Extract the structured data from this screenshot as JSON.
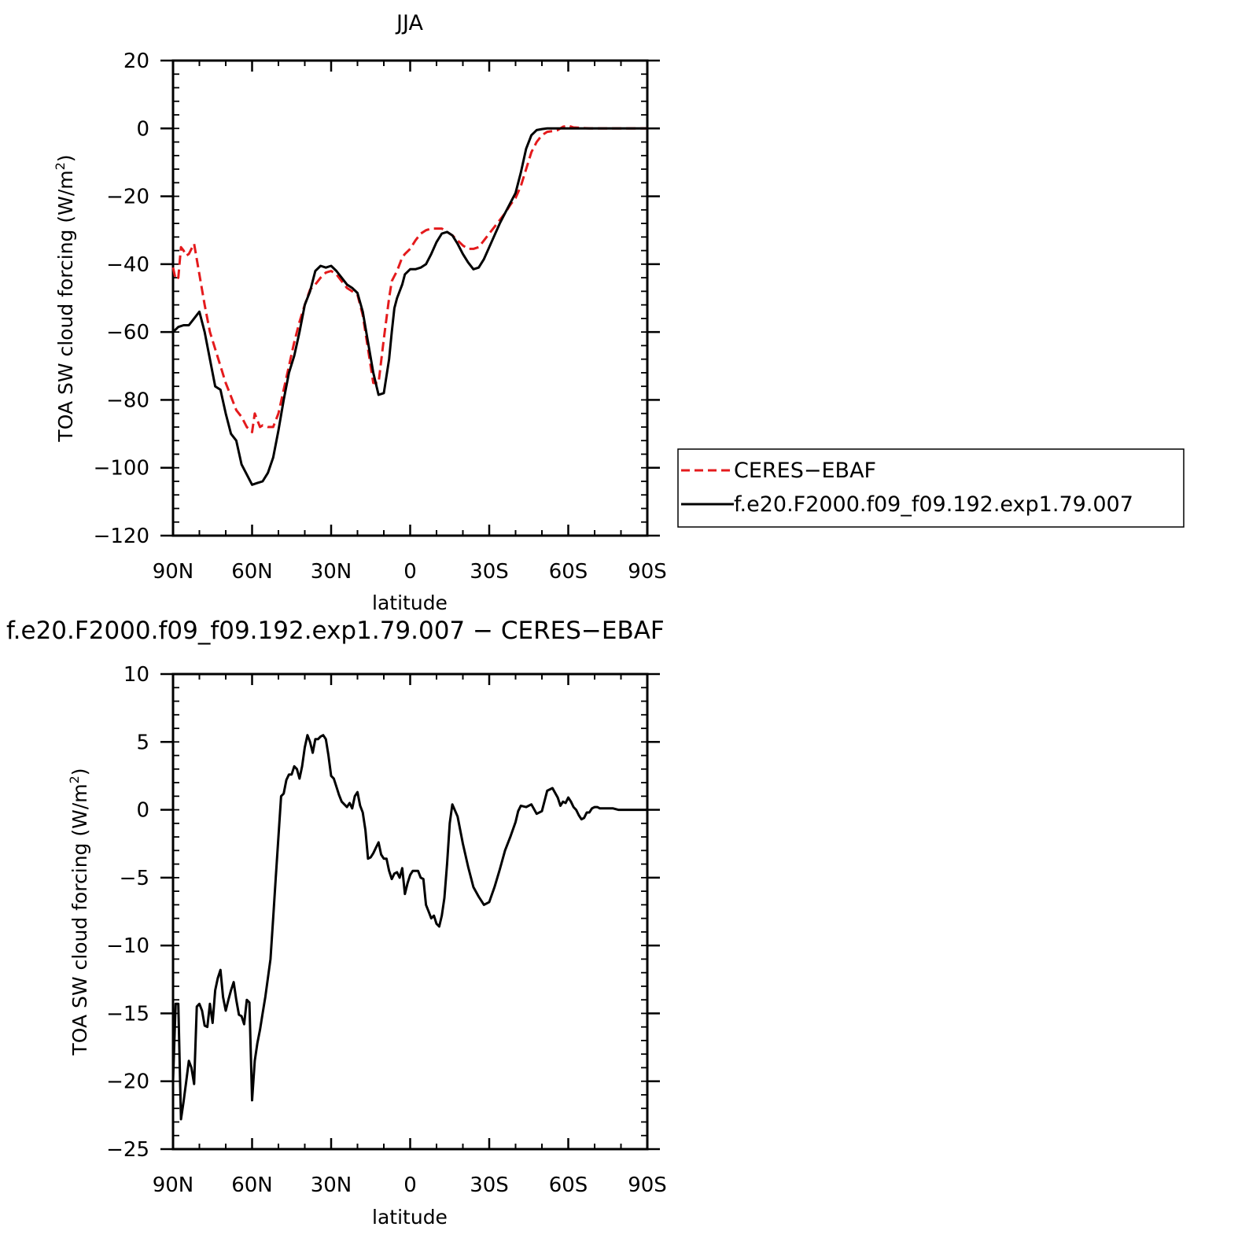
{
  "chart_data": [
    {
      "type": "line",
      "title": "JJA",
      "xlabel": "latitude",
      "ylabel": "TOA SW cloud forcing (W/m²)",
      "ylabel_base": "TOA SW cloud forcing (W/m",
      "ylabel_sup": "2",
      "ylabel_end": ")",
      "xlim": [
        90,
        -90
      ],
      "ylim": [
        -120,
        20
      ],
      "x_ticks": [
        {
          "value": 90,
          "label": "90N"
        },
        {
          "value": 60,
          "label": "60N"
        },
        {
          "value": 30,
          "label": "30N"
        },
        {
          "value": 0,
          "label": "0"
        },
        {
          "value": -30,
          "label": "30S"
        },
        {
          "value": -60,
          "label": "60S"
        },
        {
          "value": -90,
          "label": "90S"
        }
      ],
      "y_ticks": [
        {
          "value": 20,
          "label": "20"
        },
        {
          "value": 0,
          "label": "0"
        },
        {
          "value": -20,
          "label": "−20"
        },
        {
          "value": -40,
          "label": "−40"
        },
        {
          "value": -60,
          "label": "−60"
        },
        {
          "value": -80,
          "label": "−80"
        },
        {
          "value": -100,
          "label": "−100"
        },
        {
          "value": -120,
          "label": "−120"
        }
      ],
      "grid": false,
      "legend_position": "outside-right",
      "series": [
        {
          "name": "CERES−EBAF",
          "color": "#e41a1c",
          "dash": "dashed",
          "x": [
            90,
            89,
            88,
            87,
            86,
            85,
            84,
            83,
            82,
            80,
            78,
            76,
            74,
            72,
            70,
            68,
            66,
            64,
            62,
            60,
            59,
            58,
            57,
            56,
            54,
            52,
            50,
            48,
            46,
            44,
            42,
            40,
            38,
            36,
            34,
            32,
            30,
            28,
            26,
            24,
            22,
            20,
            18,
            16,
            14,
            12,
            10,
            8,
            7,
            6,
            5,
            4,
            3,
            2,
            0,
            -2,
            -4,
            -6,
            -8,
            -10,
            -12,
            -14,
            -16,
            -18,
            -20,
            -22,
            -24,
            -26,
            -28,
            -30,
            -32,
            -34,
            -36,
            -38,
            -40,
            -42,
            -44,
            -46,
            -48,
            -50,
            -52,
            -54,
            -56,
            -58,
            -60,
            -62,
            -64,
            -66,
            -68,
            -70,
            -72,
            -74,
            -76,
            -78,
            -80,
            -82,
            -84,
            -86,
            -88,
            -90
          ],
          "y": [
            -41,
            -44.5,
            -44,
            -35,
            -36,
            -37.5,
            -37,
            -35.5,
            -34,
            -43,
            -52,
            -60,
            -65,
            -70,
            -75,
            -79,
            -83,
            -85,
            -88,
            -89.5,
            -84,
            -86,
            -88,
            -87.5,
            -88,
            -88,
            -84,
            -77,
            -70,
            -63,
            -57,
            -52,
            -47.5,
            -46,
            -44,
            -42.5,
            -42,
            -43,
            -45,
            -47,
            -48,
            -49,
            -55,
            -65,
            -75,
            -75,
            -62,
            -50,
            -45,
            -43.5,
            -42,
            -40,
            -38,
            -37,
            -35.5,
            -33,
            -31,
            -30,
            -29.5,
            -29.5,
            -29.5,
            -30.5,
            -31.5,
            -33,
            -34.5,
            -35.5,
            -35.5,
            -35,
            -33,
            -31,
            -29,
            -27,
            -25,
            -22.5,
            -20.5,
            -17,
            -12,
            -7,
            -4,
            -2,
            -1,
            -0.8,
            -0.5,
            0.5,
            0.8,
            0.3,
            0.2,
            0.1,
            0,
            0,
            0,
            0,
            0,
            0,
            0,
            0,
            0,
            0,
            0,
            0
          ]
        },
        {
          "name": "f.e20.F2000.f09_f09.192.exp1.79.007",
          "color": "#000000",
          "dash": "solid",
          "x": [
            90,
            88,
            86,
            84,
            82,
            80,
            78,
            76,
            74,
            72,
            70,
            68,
            66,
            64,
            62,
            60,
            58,
            56,
            54,
            52,
            50,
            48,
            46,
            44,
            42,
            40,
            38,
            36,
            34,
            32,
            30,
            28,
            26,
            24,
            22,
            20,
            18,
            16,
            14,
            12,
            10,
            8,
            7,
            6,
            5,
            4,
            3,
            2,
            0,
            -2,
            -4,
            -6,
            -8,
            -10,
            -12,
            -14,
            -16,
            -18,
            -20,
            -22,
            -24,
            -26,
            -28,
            -30,
            -32,
            -34,
            -36,
            -38,
            -40,
            -42,
            -44,
            -46,
            -48,
            -50,
            -52,
            -54,
            -56,
            -58,
            -60,
            -62,
            -64,
            -66,
            -68,
            -70,
            -72,
            -74,
            -76,
            -78,
            -80,
            -82,
            -84,
            -86,
            -88,
            -90
          ],
          "y": [
            -60,
            -58.5,
            -58,
            -58,
            -56,
            -54,
            -60,
            -68,
            -76,
            -77,
            -84,
            -90,
            -92,
            -99,
            -102,
            -105,
            -104.5,
            -104,
            -101.5,
            -97,
            -89,
            -80,
            -72,
            -67,
            -60,
            -52,
            -48,
            -42,
            -40.5,
            -41,
            -40.5,
            -42,
            -44,
            -46,
            -47,
            -48.5,
            -54,
            -63,
            -72,
            -78.5,
            -78,
            -68,
            -60,
            -53,
            -50,
            -48,
            -46,
            -43,
            -41.5,
            -41.5,
            -41,
            -40,
            -37,
            -33.5,
            -31,
            -30.5,
            -31.5,
            -34,
            -37,
            -39.5,
            -41.5,
            -41,
            -38.5,
            -35,
            -31.5,
            -28,
            -25,
            -22,
            -19,
            -13,
            -6,
            -2,
            -0.5,
            -0.2,
            0,
            0,
            0,
            0,
            0,
            0,
            0,
            0,
            0,
            0,
            0,
            0,
            0,
            0,
            0,
            0,
            0,
            0,
            0,
            0
          ]
        }
      ]
    },
    {
      "type": "line",
      "title": "f.e20.F2000.f09_f09.192.exp1.79.007 − CERES−EBAF",
      "xlabel": "latitude",
      "ylabel": "TOA SW cloud forcing (W/m²)",
      "ylabel_base": "TOA SW cloud forcing (W/m",
      "ylabel_sup": "2",
      "ylabel_end": ")",
      "xlim": [
        90,
        -90
      ],
      "ylim": [
        -25,
        10
      ],
      "x_ticks": [
        {
          "value": 90,
          "label": "90N"
        },
        {
          "value": 60,
          "label": "60N"
        },
        {
          "value": 30,
          "label": "30N"
        },
        {
          "value": 0,
          "label": "0"
        },
        {
          "value": -30,
          "label": "30S"
        },
        {
          "value": -60,
          "label": "60S"
        },
        {
          "value": -90,
          "label": "90S"
        }
      ],
      "y_ticks": [
        {
          "value": 10,
          "label": "10"
        },
        {
          "value": 5,
          "label": "5"
        },
        {
          "value": 0,
          "label": "0"
        },
        {
          "value": -5,
          "label": "−5"
        },
        {
          "value": -10,
          "label": "−10"
        },
        {
          "value": -15,
          "label": "−15"
        },
        {
          "value": -20,
          "label": "−20"
        },
        {
          "value": -25,
          "label": "−25"
        }
      ],
      "grid": false,
      "series": [
        {
          "color": "#000000",
          "dash": "solid",
          "x": [
            90,
            89,
            88,
            87,
            86,
            85,
            84,
            83,
            82,
            81,
            80,
            79,
            78,
            77,
            76,
            75,
            74,
            73,
            72,
            71,
            70,
            69,
            68,
            67,
            66,
            65,
            64,
            63,
            62,
            61,
            60,
            59,
            58,
            57,
            56,
            55,
            54,
            53,
            52,
            51,
            50,
            49,
            48,
            47,
            46,
            45,
            44,
            43,
            42,
            41,
            40,
            39,
            38,
            37,
            36,
            35,
            34,
            33,
            32,
            31,
            30,
            29,
            28,
            27,
            26,
            25,
            24,
            23,
            22,
            21,
            20,
            19,
            18,
            17,
            16,
            15,
            14,
            13,
            12,
            11,
            10,
            9,
            8,
            7,
            6,
            5,
            4,
            3,
            2,
            1,
            0,
            -1,
            -2,
            -3,
            -4,
            -5,
            -6,
            -7,
            -8,
            -9,
            -10,
            -11,
            -12,
            -13,
            -14,
            -15,
            -16,
            -18,
            -20,
            -22,
            -24,
            -26,
            -28,
            -30,
            -32,
            -34,
            -36,
            -38,
            -40,
            -41,
            -42,
            -44,
            -46,
            -48,
            -50,
            -52,
            -54,
            -56,
            -57,
            -58,
            -59,
            -60,
            -61,
            -62,
            -63,
            -64,
            -65,
            -66,
            -67,
            -68,
            -69,
            -70,
            -71,
            -72,
            -73,
            -74,
            -75,
            -76,
            -77,
            -78,
            -79,
            -80,
            -82,
            -84,
            -86,
            -88,
            -90
          ],
          "y": [
            -20,
            -14.3,
            -14.3,
            -22.8,
            -21.5,
            -20,
            -18.5,
            -19,
            -20.2,
            -14.5,
            -14.3,
            -14.8,
            -15.9,
            -16,
            -14.3,
            -15.7,
            -13.3,
            -12.4,
            -11.8,
            -13.8,
            -14.8,
            -14,
            -13.3,
            -12.7,
            -14,
            -15.1,
            -15.2,
            -15.8,
            -14,
            -14.2,
            -21.4,
            -18.5,
            -17.2,
            -16.2,
            -15,
            -13.8,
            -12.4,
            -11,
            -8,
            -5,
            -2,
            1,
            1.2,
            2.2,
            2.6,
            2.6,
            3.2,
            3,
            2.3,
            3.2,
            4.6,
            5.5,
            5,
            4.2,
            5.2,
            5.2,
            5.4,
            5.5,
            5.2,
            4,
            2.5,
            2.3,
            1.7,
            1.1,
            0.6,
            0.4,
            0.2,
            0.5,
            0.1,
            1,
            1.3,
            0.3,
            -0.2,
            -1.5,
            -3.6,
            -3.5,
            -3.2,
            -2.8,
            -2.4,
            -3.3,
            -3.6,
            -3.6,
            -4.5,
            -5.1,
            -4.7,
            -4.6,
            -5,
            -4.3,
            -6.2,
            -5.4,
            -4.8,
            -4.5,
            -4.5,
            -4.5,
            -5,
            -5.1,
            -7,
            -7.5,
            -8,
            -7.8,
            -8.4,
            -8.6,
            -7.8,
            -6.5,
            -4,
            -1,
            0.4,
            -0.5,
            -2.5,
            -4.2,
            -5.7,
            -6.4,
            -7,
            -6.8,
            -5.7,
            -4.4,
            -3,
            -2,
            -0.9,
            -0.1,
            0.3,
            0.2,
            0.4,
            -0.3,
            -0.1,
            1.4,
            1.6,
            0.9,
            0.3,
            0.6,
            0.5,
            0.9,
            0.6,
            0.2,
            0,
            -0.4,
            -0.7,
            -0.6,
            -0.2,
            -0.2,
            0.1,
            0.2,
            0.2,
            0.1,
            0.1,
            0.1,
            0.1,
            0.1,
            0.1,
            0.05,
            0,
            0,
            0,
            0,
            0,
            0,
            0
          ]
        }
      ]
    }
  ]
}
